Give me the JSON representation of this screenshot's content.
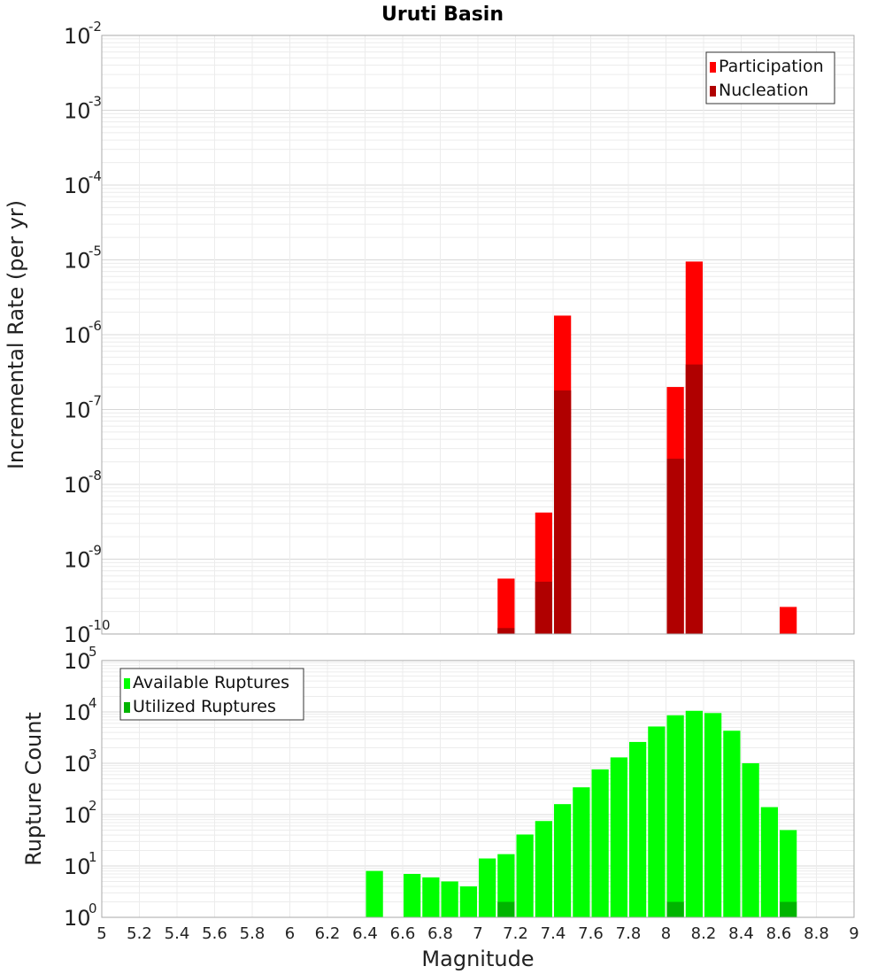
{
  "chart_data": [
    {
      "type": "bar",
      "title": "Uruti Basin",
      "xlabel": "",
      "ylabel": "Incremental Rate (per yr)",
      "y_scale": "log",
      "ylim": [
        1e-10,
        0.01
      ],
      "xlim": [
        5,
        9
      ],
      "grid": true,
      "legend_position": "top-right",
      "x": [
        7.15,
        7.35,
        7.45,
        8.05,
        8.15,
        8.65
      ],
      "series": [
        {
          "name": "Participation",
          "color": "#ff0000",
          "values": [
            5.5e-10,
            4.2e-09,
            1.8e-06,
            2e-07,
            9.5e-06,
            2.3e-10
          ]
        },
        {
          "name": "Nucleation",
          "color": "#b00000",
          "values": [
            1.2e-10,
            5e-10,
            1.8e-07,
            2.2e-08,
            4e-07,
            null
          ]
        }
      ]
    },
    {
      "type": "bar",
      "title": "",
      "xlabel": "Magnitude",
      "ylabel": "Rupture Count",
      "y_scale": "log",
      "ylim": [
        1,
        100000.0
      ],
      "xlim": [
        5,
        9
      ],
      "grid": true,
      "legend_position": "top-left",
      "x": [
        6.45,
        6.65,
        6.75,
        6.85,
        6.95,
        7.05,
        7.15,
        7.25,
        7.35,
        7.45,
        7.55,
        7.65,
        7.75,
        7.85,
        7.95,
        8.05,
        8.15,
        8.25,
        8.35,
        8.45,
        8.55,
        8.65
      ],
      "series": [
        {
          "name": "Available Ruptures",
          "color": "#00ff00",
          "values": [
            8,
            7,
            6,
            5,
            4,
            14,
            17,
            41,
            75,
            160,
            340,
            760,
            1300,
            2600,
            5200,
            8600,
            10500,
            9500,
            4300,
            1000,
            140,
            50
          ]
        },
        {
          "name": "Utilized Ruptures",
          "color": "#00b400",
          "values": [
            null,
            null,
            null,
            null,
            null,
            1,
            2,
            1,
            1,
            1,
            null,
            null,
            null,
            null,
            null,
            2,
            1,
            null,
            null,
            null,
            null,
            2
          ]
        }
      ]
    }
  ],
  "x_ticks": [
    "5",
    "5.2",
    "5.4",
    "5.6",
    "5.8",
    "6",
    "6.2",
    "6.4",
    "6.6",
    "6.8",
    "7",
    "7.2",
    "7.4",
    "7.6",
    "7.8",
    "8",
    "8.2",
    "8.4",
    "8.6",
    "8.8",
    "9"
  ]
}
